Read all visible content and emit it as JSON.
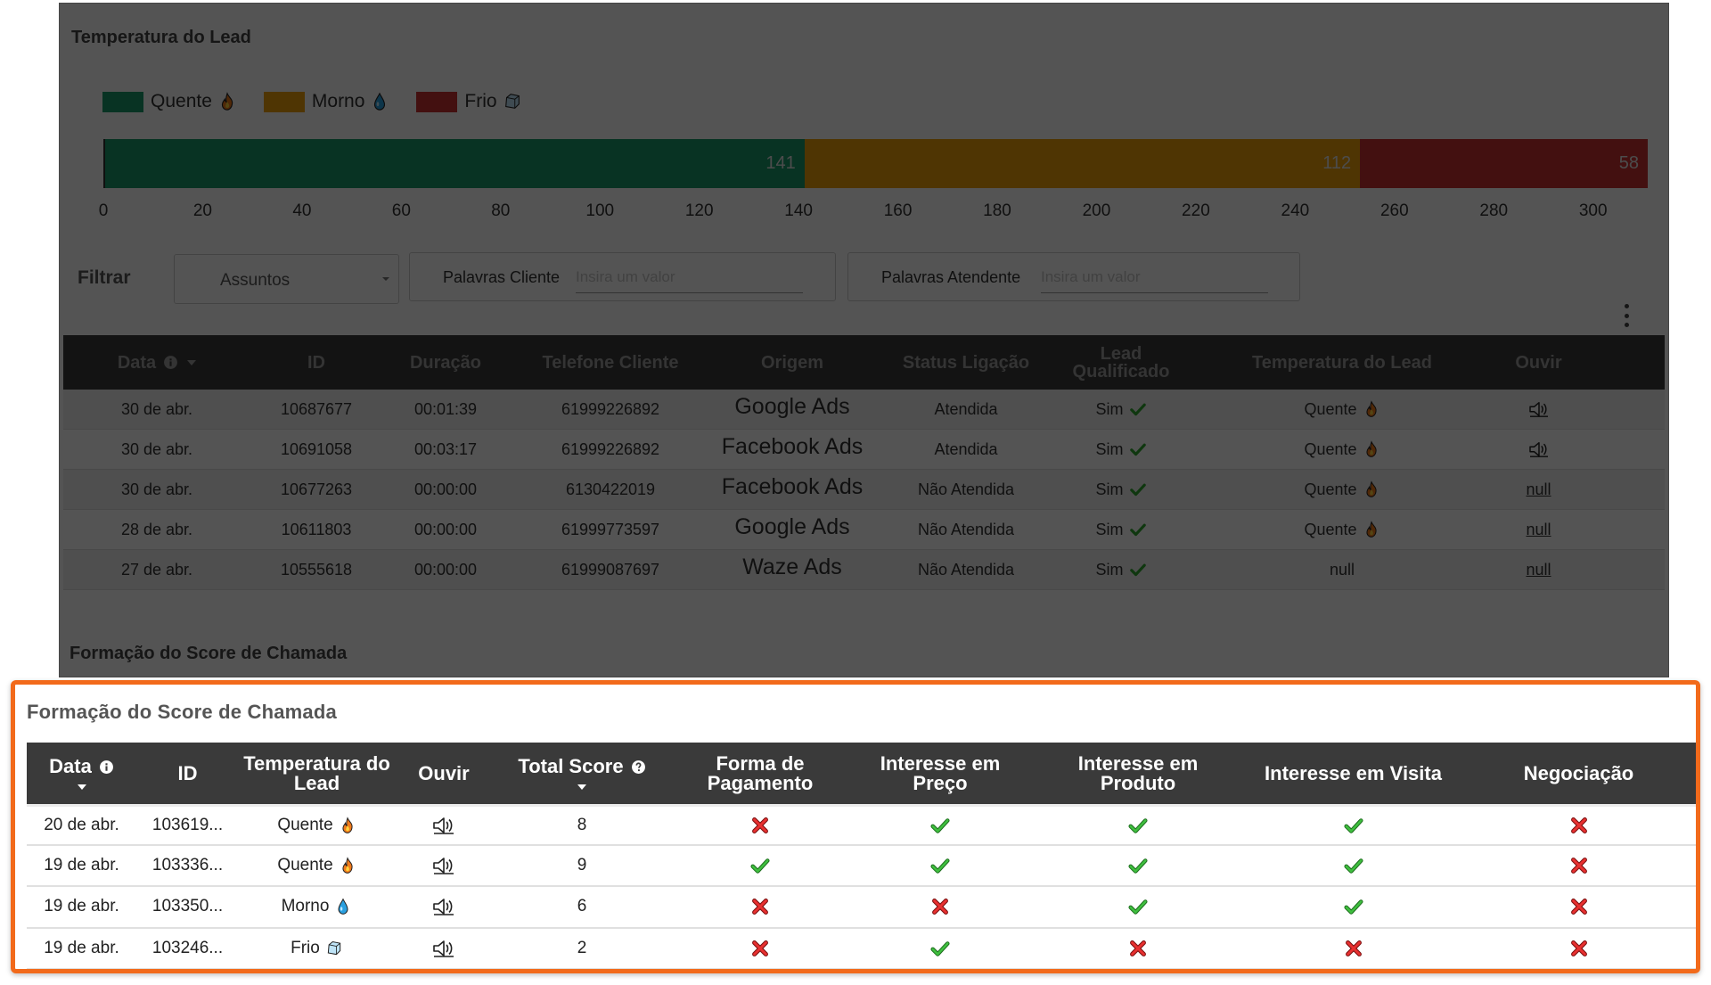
{
  "colors": {
    "quente": "#1a9b6c",
    "morno": "#f0a10a",
    "frio": "#cc3333",
    "accent_border": "#f26a1b",
    "header_bg": "#3a3a3a",
    "check": "#2ea82e",
    "cross": "#e02020"
  },
  "lead_temperature": {
    "title": "Temperatura do Lead",
    "legend": [
      {
        "label": "Quente",
        "icon": "fire-icon"
      },
      {
        "label": "Morno",
        "icon": "water-drop-icon"
      },
      {
        "label": "Frio",
        "icon": "ice-cube-icon"
      }
    ]
  },
  "chart_data": {
    "type": "bar",
    "orientation": "horizontal-stacked",
    "categories": [
      "Quente",
      "Morno",
      "Frio"
    ],
    "values": [
      141,
      112,
      58
    ],
    "data_labels": [
      "141",
      "112",
      "58"
    ],
    "xlim": [
      0,
      311
    ],
    "x_ticks": [
      0,
      20,
      40,
      60,
      80,
      100,
      120,
      140,
      160,
      180,
      200,
      220,
      240,
      260,
      280,
      300
    ],
    "x_tick_labels": [
      "0",
      "20",
      "40",
      "60",
      "80",
      "100",
      "120",
      "140",
      "160",
      "180",
      "200",
      "220",
      "240",
      "260",
      "280",
      "300"
    ],
    "title": "",
    "xlabel": "",
    "ylabel": "",
    "grid": false
  },
  "filter": {
    "label": "Filtrar",
    "subjects_select": "Assuntos",
    "client_words_label": "Palavras Cliente",
    "client_words_placeholder": "Insira um valor",
    "agent_words_label": "Palavras Atendente",
    "agent_words_placeholder": "Insira um valor"
  },
  "calls_table": {
    "headers": {
      "data": "Data",
      "id": "ID",
      "duracao": "Duração",
      "telefone": "Telefone Cliente",
      "origem": "Origem",
      "status": "Status Ligação",
      "lead_qualificado_1": "Lead",
      "lead_qualificado_2": "Qualificado",
      "temperatura": "Temperatura do Lead",
      "ouvir": "Ouvir"
    },
    "rows": [
      {
        "data": "30 de abr.",
        "id": "10687677",
        "duracao": "00:01:39",
        "telefone": "61999226892",
        "origem": "Google Ads",
        "status": "Atendida",
        "qualificado": "Sim",
        "temperatura": "Quente",
        "ouvir": ""
      },
      {
        "data": "30 de abr.",
        "id": "10691058",
        "duracao": "00:03:17",
        "telefone": "61999226892",
        "origem": "Facebook Ads",
        "status": "Atendida",
        "qualificado": "Sim",
        "temperatura": "Quente",
        "ouvir": ""
      },
      {
        "data": "30 de abr.",
        "id": "10677263",
        "duracao": "00:00:00",
        "telefone": "6130422019",
        "origem": "Facebook Ads",
        "status": "Não Atendida",
        "qualificado": "Sim",
        "temperatura": "Quente",
        "ouvir": "null"
      },
      {
        "data": "28 de abr.",
        "id": "10611803",
        "duracao": "00:00:00",
        "telefone": "61999773597",
        "origem": "Google Ads",
        "status": "Não Atendida",
        "qualificado": "Sim",
        "temperatura": "Quente",
        "ouvir": "null"
      },
      {
        "data": "27 de abr.",
        "id": "10555618",
        "duracao": "00:00:00",
        "telefone": "61999087697",
        "origem": "Waze Ads",
        "status": "Não Atendida",
        "qualificado": "Sim",
        "temperatura": "null",
        "ouvir": "null"
      }
    ]
  },
  "score_section_bg": {
    "title": "Formação do Score de Chamada"
  },
  "score_card": {
    "title": "Formação do Score de Chamada",
    "headers": {
      "data": "Data",
      "id": "ID",
      "temperatura_1": "Temperatura do",
      "temperatura_2": "Lead",
      "ouvir": "Ouvir",
      "total_score": "Total Score",
      "forma_pagamento_1": "Forma de",
      "forma_pagamento_2": "Pagamento",
      "interesse_preco_1": "Interesse em",
      "interesse_preco_2": "Preço",
      "interesse_produto_1": "Interesse em",
      "interesse_produto_2": "Produto",
      "interesse_visita": "Interesse em Visita",
      "negociacao": "Negociação"
    },
    "rows": [
      {
        "data": "20 de abr.",
        "id": "103619...",
        "temperatura": "Quente",
        "temp_icon": "fire-icon",
        "score": "8",
        "pagamento": false,
        "preco": true,
        "produto": true,
        "visita": true,
        "negociacao": false
      },
      {
        "data": "19 de abr.",
        "id": "103336...",
        "temperatura": "Quente",
        "temp_icon": "fire-icon",
        "score": "9",
        "pagamento": true,
        "preco": true,
        "produto": true,
        "visita": true,
        "negociacao": false
      },
      {
        "data": "19 de abr.",
        "id": "103350...",
        "temperatura": "Morno",
        "temp_icon": "water-drop-icon",
        "score": "6",
        "pagamento": false,
        "preco": false,
        "produto": true,
        "visita": true,
        "negociacao": false
      },
      {
        "data": "19 de abr.",
        "id": "103246...",
        "temperatura": "Frio",
        "temp_icon": "ice-cube-icon",
        "score": "2",
        "pagamento": false,
        "preco": true,
        "produto": false,
        "visita": false,
        "negociacao": false
      }
    ]
  }
}
